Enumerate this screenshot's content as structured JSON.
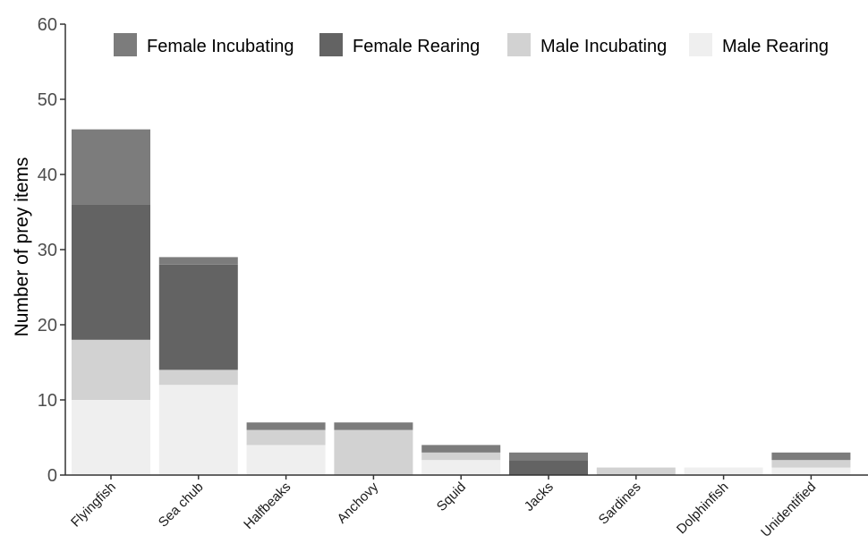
{
  "chart_data": {
    "type": "bar",
    "stacked": true,
    "title": "",
    "xlabel": "",
    "ylabel": "Number of prey items",
    "ylim": [
      0,
      60
    ],
    "yticks": [
      0,
      10,
      20,
      30,
      40,
      50,
      60
    ],
    "grid": false,
    "legend_position": "top",
    "categories": [
      "Flyingfish",
      "Sea chub",
      "Halfbeaks",
      "Anchovy",
      "Squid",
      "Jacks",
      "Sardines",
      "Dolphinfish",
      "Unidentified"
    ],
    "series": [
      {
        "name": "Male Rearing",
        "color": "#efefef",
        "values": [
          10,
          12,
          4,
          0,
          2,
          0,
          0,
          1,
          1
        ]
      },
      {
        "name": "Male Incubating",
        "color": "#d2d2d2",
        "values": [
          8,
          2,
          2,
          6,
          1,
          0,
          1,
          0,
          1
        ]
      },
      {
        "name": "Female Rearing",
        "color": "#636363",
        "values": [
          18,
          14,
          0,
          0,
          0,
          2,
          0,
          0,
          0
        ]
      },
      {
        "name": "Female Incubating",
        "color": "#7c7c7c",
        "values": [
          10,
          1,
          1,
          1,
          1,
          1,
          0,
          0,
          1
        ]
      }
    ],
    "legend_order": [
      "Female Incubating",
      "Female Rearing",
      "Male Incubating",
      "Male Rearing"
    ]
  }
}
